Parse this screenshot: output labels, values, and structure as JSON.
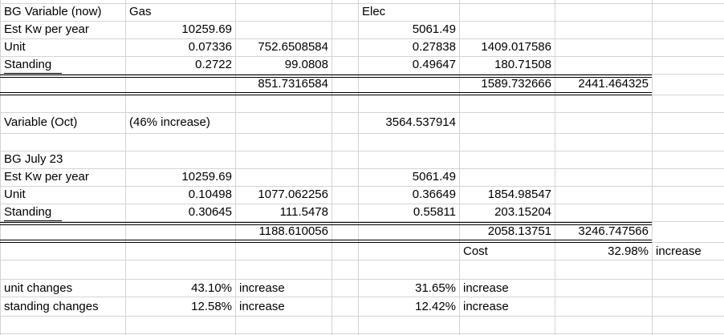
{
  "sheet": {
    "r1": {
      "a": "BG Variable (now)",
      "b": "Gas",
      "e": "Elec"
    },
    "r2": {
      "a": "Est Kw per year",
      "b": "10259.69",
      "e": "5061.49"
    },
    "r3": {
      "a": "Unit",
      "b": "0.07336",
      "c": "752.6508584",
      "e": "0.27838",
      "f": "1409.017586"
    },
    "r4": {
      "a": "Standing",
      "b": "0.2722",
      "c": "99.0808",
      "e": "0.49647",
      "f": "180.71508"
    },
    "r5": {
      "c": "851.7316584",
      "f": "1589.732666",
      "g": "2441.464325"
    },
    "r7": {
      "a": "Variable (Oct)",
      "b": "(46% increase)",
      "e": "3564.537914"
    },
    "r9": {
      "a": "BG July 23"
    },
    "r10": {
      "a": "Est Kw per year",
      "b": "10259.69",
      "e": "5061.49"
    },
    "r11": {
      "a": "Unit",
      "b": "0.10498",
      "c": "1077.062256",
      "e": "0.36649",
      "f": "1854.98547"
    },
    "r12": {
      "a": "Standing",
      "b": "0.30645",
      "c": "111.5478",
      "e": "0.55811",
      "f": "203.15204"
    },
    "r13": {
      "c": "1188.610056",
      "f": "2058.13751",
      "g": "3246.747566"
    },
    "r14": {
      "f": "Cost",
      "g": "32.98%",
      "h": "increase"
    },
    "r16": {
      "a": "unit changes",
      "b": "43.10%",
      "c": "increase",
      "e": "31.65%",
      "f": "increase"
    },
    "r17": {
      "a": "standing changes",
      "b": "12.58%",
      "c": "increase",
      "e": "12.42%",
      "f": "increase"
    }
  }
}
